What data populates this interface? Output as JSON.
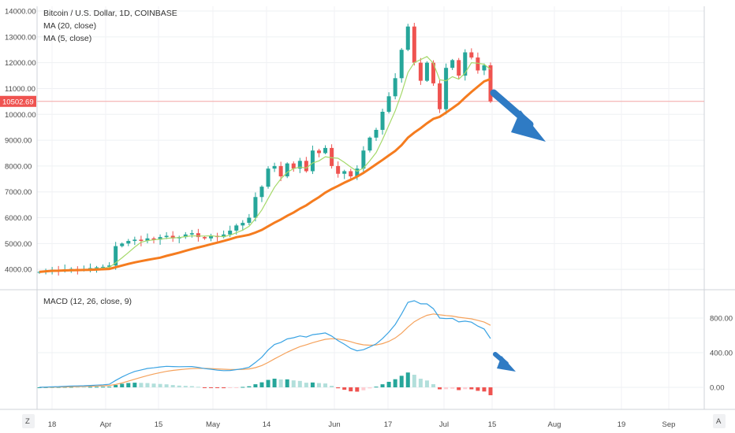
{
  "header": {
    "title": "Bitcoin / U.S. Dollar, 1D, COINBASE",
    "ma20_label": "MA (20, close)",
    "ma5_label": "MA (5, close)"
  },
  "macd_label": "MACD (12, 26, close, 9)",
  "price_tag": "10502.69",
  "footer": {
    "left_icon": "Z",
    "right_icon": "A"
  },
  "colors": {
    "up": "#26a69a",
    "down": "#ef5350",
    "ma20": "#f57c1f",
    "ma5": "#a5d96a",
    "macd": "#3aa3e3",
    "signal": "#f5a25c",
    "arrow": "#2f7bc4",
    "price_line": "#f4a6a6"
  },
  "chart_data": [
    {
      "type": "candlestick",
      "title": "Bitcoin / U.S. Dollar, 1D, COINBASE",
      "y_ticks": [
        "14000.00",
        "13000.00",
        "12000.00",
        "11000.00",
        "10000.00",
        "9000.00",
        "8000.00",
        "7000.00",
        "6000.00",
        "5000.00",
        "4000.00"
      ],
      "ylim": [
        3700,
        14200
      ],
      "x_ticks": [
        "18",
        "Apr",
        "15",
        "May",
        "14",
        "Jun",
        "17",
        "Jul",
        "15",
        "Aug",
        "19",
        "Sep"
      ],
      "current_price": 10502.69,
      "series": [
        {
          "name": "MA (20, close)",
          "values_approx_range": [
            3850,
            11700
          ]
        },
        {
          "name": "MA (5, close)",
          "values_approx_range": [
            3900,
            12400
          ]
        }
      ],
      "close_path": [
        3900,
        3950,
        3980,
        3960,
        4000,
        4020,
        3990,
        4010,
        4050,
        4080,
        4100,
        4150,
        4900,
        5000,
        5100,
        5150,
        5100,
        5200,
        5150,
        5250,
        5300,
        5200,
        5250,
        5350,
        5400,
        5250,
        5200,
        5300,
        5250,
        5350,
        5500,
        5700,
        5800,
        6000,
        6800,
        7200,
        7900,
        8000,
        7600,
        8100,
        7900,
        8200,
        7800,
        8600,
        8500,
        8700,
        8000,
        7700,
        7800,
        7600,
        7900,
        8600,
        9100,
        9400,
        10100,
        10700,
        11400,
        12500,
        13400,
        12000,
        11300,
        12000,
        11200,
        10200,
        11800,
        12100,
        11500,
        12400,
        12200,
        11700,
        11900,
        10500
      ]
    },
    {
      "type": "macd",
      "title": "MACD (12, 26, close, 9)",
      "y_ticks": [
        "800.00",
        "400.00",
        "0.00"
      ],
      "series": [
        {
          "name": "MACD",
          "peak": 1000
        },
        {
          "name": "Signal",
          "peak": 870
        }
      ]
    }
  ]
}
